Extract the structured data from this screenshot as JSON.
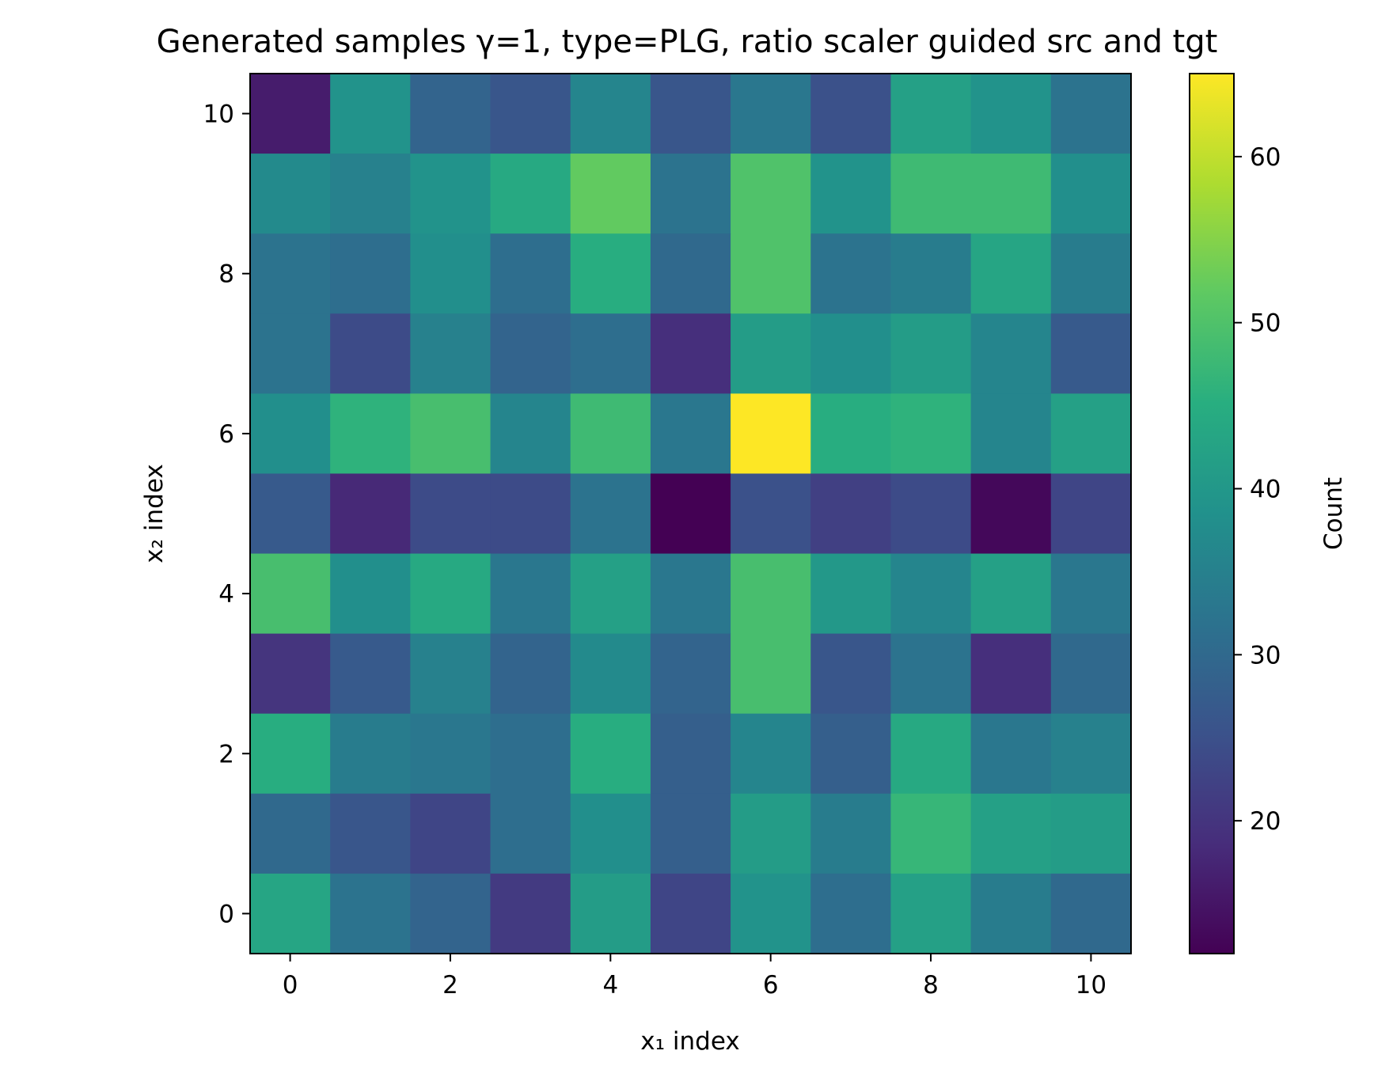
{
  "chart_data": {
    "type": "heatmap",
    "title": "Generated samples γ=1, type=PLG, ratio scaler guided src and tgt",
    "xlabel": "x₁ index",
    "ylabel": "x₂ index",
    "colorbar_label": "Count",
    "colormap": "viridis",
    "x_range": [
      -0.5,
      10.5
    ],
    "y_range": [
      -0.5,
      10.5
    ],
    "x_ticks": [
      "0",
      "2",
      "4",
      "6",
      "8",
      "10"
    ],
    "y_ticks": [
      "0",
      "2",
      "4",
      "6",
      "8",
      "10"
    ],
    "color_range": [
      12,
      65
    ],
    "colorbar_ticks": [
      "20",
      "30",
      "40",
      "50",
      "60"
    ],
    "grid": false,
    "values_row_order": "x2 from 10 (top) down to 0 (bottom); columns x1 from 0 to 10",
    "values": [
      [
        16,
        39,
        29,
        26,
        36,
        26,
        33,
        25,
        42,
        39,
        32
      ],
      [
        37,
        35,
        39,
        44,
        52,
        32,
        50,
        39,
        48,
        48,
        38
      ],
      [
        32,
        31,
        38,
        31,
        45,
        30,
        50,
        32,
        34,
        43,
        34
      ],
      [
        32,
        24,
        35,
        29,
        31,
        19,
        41,
        38,
        41,
        36,
        27
      ],
      [
        38,
        46,
        49,
        36,
        48,
        33,
        65,
        45,
        46,
        36,
        42
      ],
      [
        27,
        18,
        24,
        24,
        32,
        12,
        25,
        22,
        24,
        13,
        23
      ],
      [
        49,
        38,
        44,
        33,
        42,
        33,
        49,
        40,
        36,
        42,
        33
      ],
      [
        20,
        27,
        35,
        29,
        37,
        29,
        49,
        26,
        32,
        19,
        30
      ],
      [
        45,
        34,
        33,
        31,
        45,
        28,
        36,
        28,
        44,
        33,
        35
      ],
      [
        30,
        26,
        23,
        31,
        38,
        28,
        41,
        34,
        47,
        42,
        41
      ],
      [
        43,
        32,
        29,
        21,
        41,
        23,
        39,
        31,
        42,
        34,
        30
      ]
    ]
  }
}
